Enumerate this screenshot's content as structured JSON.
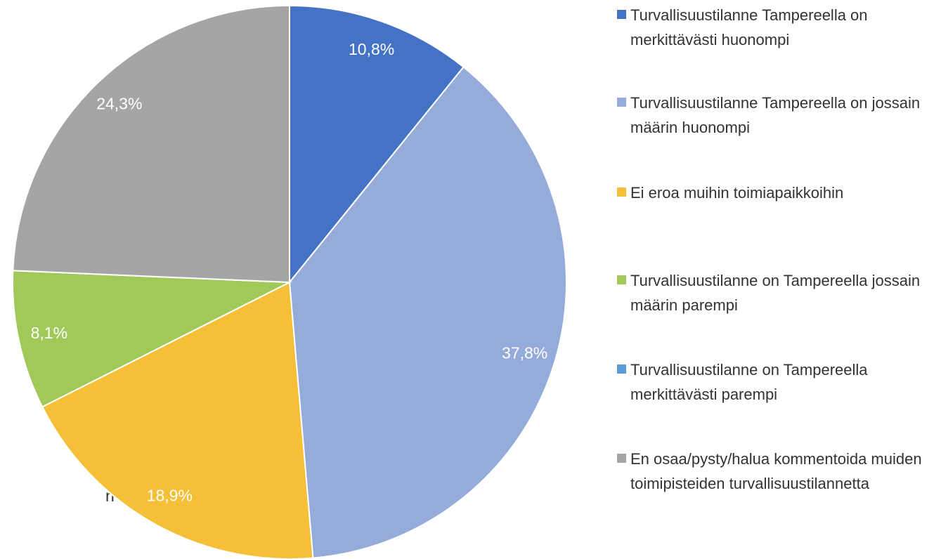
{
  "chart_data": {
    "type": "pie",
    "categories": [
      "Turvallisuustilanne Tampereella on merkittävästi huonompi",
      "Turvallisuustilanne Tampereella on jossain määrin huonompi",
      "Ei eroa muihin toimiapaikkoihin",
      "Turvallisuustilanne on Tampereella jossain määrin parempi",
      "Turvallisuustilanne on Tampereella merkittävästi parempi",
      "En osaa/pysty/halua kommentoida muiden toimipisteiden turvallisuustilannetta"
    ],
    "values": [
      10.8,
      37.8,
      18.9,
      8.1,
      0,
      24.3
    ],
    "value_labels": [
      "10,8%",
      "37,8%",
      "18,9%",
      "8,1%",
      null,
      "24,3%"
    ],
    "colors": [
      "#4472c4",
      "#95abda",
      "#f5bf37",
      "#a1c95a",
      "#5b9bd5",
      "#a5a5a5"
    ],
    "annotations": [
      "n"
    ]
  }
}
